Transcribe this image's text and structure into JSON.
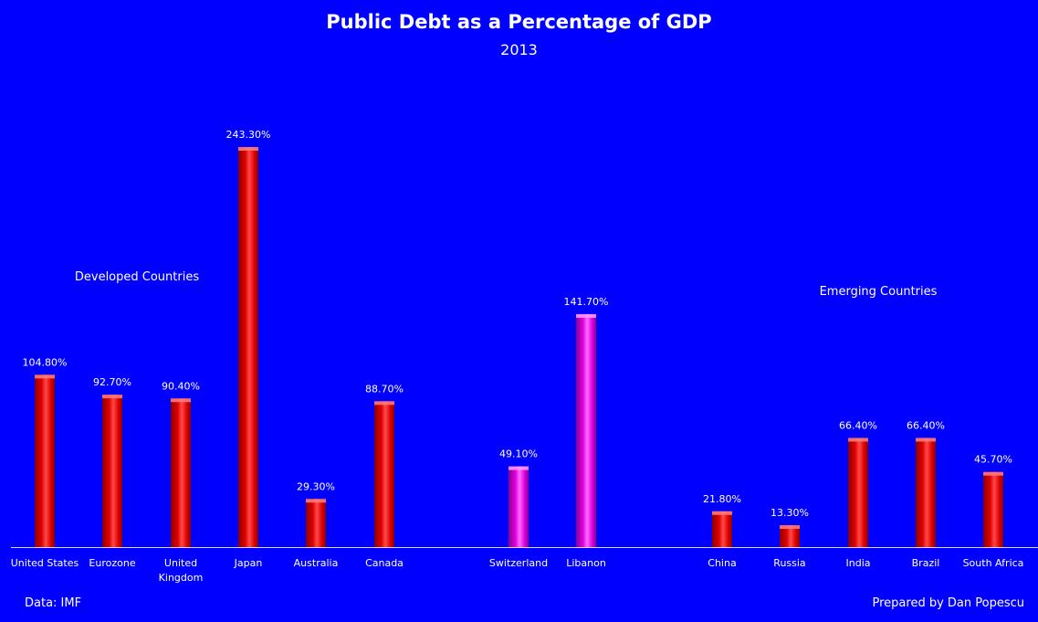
{
  "chart_data": {
    "type": "bar",
    "title": "Public Debt as a Percentage of GDP",
    "subtitle": "2013",
    "categories": [
      "United States",
      "Eurozone",
      "United Kingdom",
      "Japan",
      "Australia",
      "Canada",
      "Switzerland",
      "Libanon",
      "China",
      "Russia",
      "India",
      "Brazil",
      "South Africa"
    ],
    "category_lines": [
      [
        "United States"
      ],
      [
        "Eurozone"
      ],
      [
        "United",
        "Kingdom"
      ],
      [
        "Japan"
      ],
      [
        "Australia"
      ],
      [
        "Canada"
      ],
      [
        "Switzerland"
      ],
      [
        "Libanon"
      ],
      [
        "China"
      ],
      [
        "Russia"
      ],
      [
        "India"
      ],
      [
        "Brazil"
      ],
      [
        "South Africa"
      ]
    ],
    "values": [
      104.8,
      92.7,
      90.4,
      243.3,
      29.3,
      88.7,
      49.1,
      141.7,
      21.8,
      13.3,
      66.4,
      66.4,
      45.7
    ],
    "data_labels": [
      "104.80%",
      "92.70%",
      "90.40%",
      "243.30%",
      "29.30%",
      "88.70%",
      "49.10%",
      "141.70%",
      "21.80%",
      "13.30%",
      "66.40%",
      "66.40%",
      "45.70%"
    ],
    "bar_colors": [
      "#FF0000",
      "#FF0000",
      "#FF0000",
      "#FF0000",
      "#FF0000",
      "#FF0000",
      "#FF00FF",
      "#FF00FF",
      "#FF0000",
      "#FF0000",
      "#FF0000",
      "#FF0000",
      "#FF0000"
    ],
    "groups": [
      {
        "label": "Developed Countries"
      },
      {
        "label": "Emerging Countries"
      }
    ],
    "ylim": [
      0,
      243.3
    ],
    "grid": false,
    "background": "#0000FF"
  },
  "footer": {
    "source": "Data: IMF",
    "credit": "Prepared by Dan Popescu"
  }
}
